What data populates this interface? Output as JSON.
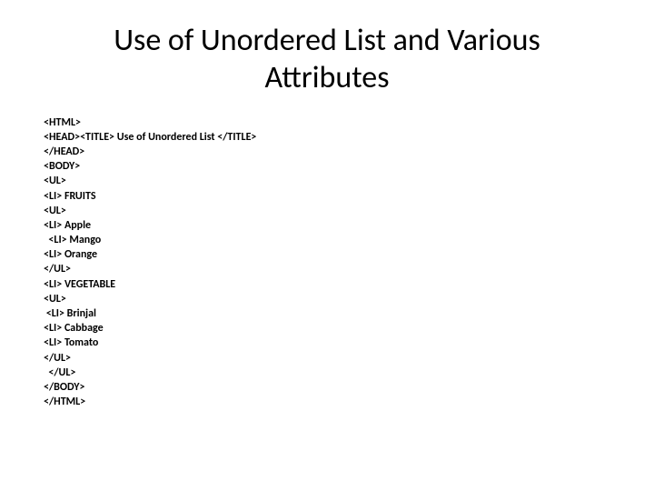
{
  "title": "Use of Unordered List and Various Attributes",
  "code": {
    "lines": [
      "<HTML>",
      "<HEAD><TITLE> Use of Unordered List </TITLE>",
      "</HEAD>",
      "<BODY>",
      "<UL>",
      "<LI> FRUITS",
      "<UL>",
      "<LI> Apple",
      "  <LI> Mango",
      "<LI> Orange",
      "</UL>",
      "<LI> VEGETABLE",
      "<UL>",
      " <LI> Brinjal",
      "<LI> Cabbage",
      "<LI> Tomato",
      "</UL>",
      "  </UL>",
      "</BODY>",
      "</HTML>"
    ]
  },
  "styles": {
    "title_fontsize": 34,
    "code_fontsize": 12,
    "code_fontweight": 700,
    "background_color": "#ffffff",
    "text_color": "#000000",
    "font_family": "Calibri, Arial, sans-serif"
  }
}
